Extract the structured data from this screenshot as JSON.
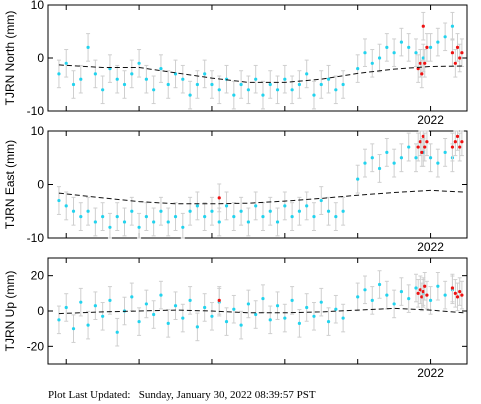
{
  "footer": {
    "label": "Plot Last Updated:",
    "timestamp": "Sunday, January 30, 2022 08:39:57 PST"
  },
  "colors": {
    "normal_points": "#22d3ee",
    "recent_points": "#ee1111",
    "error_bars": "#cfcfcf",
    "model_line": "#111111"
  },
  "chart_data": [
    {
      "type": "scatter",
      "ylabel": "TJRN North (mm)",
      "ylim": [
        -10,
        10
      ],
      "yticks": [
        -10,
        0,
        10
      ],
      "x_tick_label": "2022",
      "x_tick_label_visible": true,
      "x_range_years": [
        2016.75,
        2022.5
      ],
      "x_tick_year": 2022,
      "grid": false,
      "series": [
        {
          "kind": "points",
          "values": [
            [
              2016.9,
              -3
            ],
            [
              2017.0,
              -1
            ],
            [
              2017.1,
              -5
            ],
            [
              2017.2,
              -4
            ],
            [
              2017.3,
              2
            ],
            [
              2017.4,
              -3
            ],
            [
              2017.5,
              -6
            ],
            [
              2017.6,
              -2
            ],
            [
              2017.7,
              -4
            ],
            [
              2017.8,
              -5
            ],
            [
              2017.9,
              -3
            ],
            [
              2018.0,
              -1
            ],
            [
              2018.1,
              -4
            ],
            [
              2018.2,
              -6
            ],
            [
              2018.3,
              -2
            ],
            [
              2018.4,
              -5
            ],
            [
              2018.5,
              -3
            ],
            [
              2018.6,
              -4
            ],
            [
              2018.7,
              -7
            ],
            [
              2018.8,
              -5
            ],
            [
              2018.9,
              -3
            ],
            [
              2019.0,
              -5
            ],
            [
              2019.1,
              -6
            ],
            [
              2019.2,
              -4
            ],
            [
              2019.3,
              -7
            ],
            [
              2019.4,
              -5
            ],
            [
              2019.5,
              -6
            ],
            [
              2019.6,
              -4
            ],
            [
              2019.7,
              -7
            ],
            [
              2019.8,
              -5
            ],
            [
              2019.9,
              -6
            ],
            [
              2020.0,
              -4
            ],
            [
              2020.1,
              -6
            ],
            [
              2020.2,
              -5
            ],
            [
              2020.3,
              -3
            ],
            [
              2020.4,
              -7
            ],
            [
              2020.5,
              -5
            ],
            [
              2020.6,
              -4
            ],
            [
              2020.7,
              -6
            ],
            [
              2020.8,
              -5
            ],
            [
              2021.0,
              -2
            ],
            [
              2021.1,
              1
            ],
            [
              2021.2,
              -1
            ],
            [
              2021.3,
              0
            ],
            [
              2021.4,
              2
            ],
            [
              2021.5,
              1
            ],
            [
              2021.6,
              3
            ],
            [
              2021.7,
              2
            ],
            [
              2021.8,
              1
            ],
            [
              2021.9,
              0
            ],
            [
              2022.0,
              2
            ],
            [
              2022.1,
              3
            ],
            [
              2022.2,
              4
            ],
            [
              2022.3,
              6
            ]
          ]
        },
        {
          "kind": "recent",
          "values": [
            [
              2021.83,
              -2
            ],
            [
              2021.86,
              -1
            ],
            [
              2021.88,
              -3
            ],
            [
              2021.9,
              6
            ],
            [
              2021.92,
              -1
            ],
            [
              2021.95,
              2
            ],
            [
              2022.3,
              1
            ],
            [
              2022.34,
              -1
            ],
            [
              2022.37,
              2
            ],
            [
              2022.4,
              0
            ],
            [
              2022.43,
              1
            ]
          ]
        },
        {
          "kind": "model",
          "values": [
            [
              2016.9,
              -1.3
            ],
            [
              2017.5,
              -1.8
            ],
            [
              2018.0,
              -1.8
            ],
            [
              2018.5,
              -2.8
            ],
            [
              2019.0,
              -3.8
            ],
            [
              2019.5,
              -4.6
            ],
            [
              2020.0,
              -4.6
            ],
            [
              2020.5,
              -4.0
            ],
            [
              2021.0,
              -2.9
            ],
            [
              2021.5,
              -2.1
            ],
            [
              2022.0,
              -1.6
            ],
            [
              2022.45,
              -1.5
            ]
          ]
        }
      ]
    },
    {
      "type": "scatter",
      "ylabel": "TJRN East (mm)",
      "ylim": [
        -10,
        10
      ],
      "yticks": [
        -10,
        0,
        10
      ],
      "x_tick_label": "2022",
      "x_tick_label_visible": true,
      "x_range_years": [
        2016.75,
        2022.5
      ],
      "x_tick_year": 2022,
      "grid": false,
      "series": [
        {
          "kind": "points",
          "values": [
            [
              2016.9,
              -3
            ],
            [
              2017.0,
              -4
            ],
            [
              2017.1,
              -5
            ],
            [
              2017.2,
              -6
            ],
            [
              2017.3,
              -5
            ],
            [
              2017.4,
              -7
            ],
            [
              2017.5,
              -6
            ],
            [
              2017.6,
              -8
            ],
            [
              2017.7,
              -6
            ],
            [
              2017.8,
              -7
            ],
            [
              2017.9,
              -5
            ],
            [
              2018.0,
              -8
            ],
            [
              2018.1,
              -6
            ],
            [
              2018.2,
              -7
            ],
            [
              2018.3,
              -5
            ],
            [
              2018.4,
              -7
            ],
            [
              2018.5,
              -6
            ],
            [
              2018.6,
              -8
            ],
            [
              2018.7,
              -5
            ],
            [
              2018.8,
              -4
            ],
            [
              2018.9,
              -6
            ],
            [
              2019.0,
              -5
            ],
            [
              2019.1,
              -7
            ],
            [
              2019.2,
              -4
            ],
            [
              2019.3,
              -6
            ],
            [
              2019.4,
              -5
            ],
            [
              2019.5,
              -7
            ],
            [
              2019.6,
              -4
            ],
            [
              2019.7,
              -6
            ],
            [
              2019.8,
              -5
            ],
            [
              2019.9,
              -7
            ],
            [
              2020.0,
              -4
            ],
            [
              2020.1,
              -6
            ],
            [
              2020.2,
              -5
            ],
            [
              2020.3,
              -4
            ],
            [
              2020.4,
              -6
            ],
            [
              2020.5,
              -3
            ],
            [
              2020.6,
              -5
            ],
            [
              2020.7,
              -6
            ],
            [
              2020.8,
              -5
            ],
            [
              2021.0,
              1
            ],
            [
              2021.1,
              4
            ],
            [
              2021.2,
              5
            ],
            [
              2021.3,
              3
            ],
            [
              2021.4,
              6
            ],
            [
              2021.5,
              4
            ],
            [
              2021.6,
              5
            ],
            [
              2021.7,
              7
            ],
            [
              2021.8,
              5
            ],
            [
              2021.9,
              6
            ],
            [
              2022.0,
              5
            ],
            [
              2022.1,
              4
            ],
            [
              2022.2,
              6
            ],
            [
              2022.3,
              5
            ]
          ]
        },
        {
          "kind": "recent",
          "values": [
            [
              2021.83,
              7
            ],
            [
              2021.86,
              8
            ],
            [
              2021.88,
              6
            ],
            [
              2021.9,
              9
            ],
            [
              2021.92,
              7
            ],
            [
              2021.95,
              8
            ],
            [
              2022.3,
              7
            ],
            [
              2022.34,
              8
            ],
            [
              2022.37,
              9
            ],
            [
              2022.4,
              7
            ],
            [
              2022.43,
              8
            ],
            [
              2019.1,
              -2.5
            ]
          ]
        },
        {
          "kind": "model",
          "values": [
            [
              2016.9,
              -1.6
            ],
            [
              2017.5,
              -2.5
            ],
            [
              2018.0,
              -3.2
            ],
            [
              2018.5,
              -3.6
            ],
            [
              2019.0,
              -3.6
            ],
            [
              2019.5,
              -3.5
            ],
            [
              2020.0,
              -3.1
            ],
            [
              2020.5,
              -2.6
            ],
            [
              2021.0,
              -2.0
            ],
            [
              2021.5,
              -1.5
            ],
            [
              2022.0,
              -1.1
            ],
            [
              2022.45,
              -1.4
            ]
          ]
        }
      ]
    },
    {
      "type": "scatter",
      "ylabel": "TJRN Up (mm)",
      "ylim": [
        -30,
        30
      ],
      "yticks": [
        -20,
        0,
        20
      ],
      "x_tick_label": "2022",
      "x_tick_label_visible": true,
      "x_range_years": [
        2016.75,
        2022.5
      ],
      "x_tick_year": 2022,
      "grid": false,
      "series": [
        {
          "kind": "points",
          "values": [
            [
              2016.9,
              -5
            ],
            [
              2017.0,
              2
            ],
            [
              2017.1,
              -10
            ],
            [
              2017.2,
              5
            ],
            [
              2017.3,
              -8
            ],
            [
              2017.4,
              3
            ],
            [
              2017.5,
              -3
            ],
            [
              2017.6,
              6
            ],
            [
              2017.7,
              -12
            ],
            [
              2017.8,
              0
            ],
            [
              2017.9,
              8
            ],
            [
              2018.0,
              -6
            ],
            [
              2018.1,
              4
            ],
            [
              2018.2,
              -2
            ],
            [
              2018.3,
              9
            ],
            [
              2018.4,
              -7
            ],
            [
              2018.5,
              3
            ],
            [
              2018.6,
              -4
            ],
            [
              2018.7,
              6
            ],
            [
              2018.8,
              -9
            ],
            [
              2018.9,
              2
            ],
            [
              2019.0,
              -3
            ],
            [
              2019.1,
              5
            ],
            [
              2019.2,
              -6
            ],
            [
              2019.3,
              1
            ],
            [
              2019.4,
              -8
            ],
            [
              2019.5,
              4
            ],
            [
              2019.6,
              -2
            ],
            [
              2019.7,
              7
            ],
            [
              2019.8,
              -5
            ],
            [
              2019.9,
              3
            ],
            [
              2020.0,
              -4
            ],
            [
              2020.1,
              6
            ],
            [
              2020.2,
              -7
            ],
            [
              2020.3,
              2
            ],
            [
              2020.4,
              -3
            ],
            [
              2020.5,
              5
            ],
            [
              2020.6,
              -6
            ],
            [
              2020.7,
              1
            ],
            [
              2020.8,
              -4
            ],
            [
              2021.0,
              8
            ],
            [
              2021.1,
              12
            ],
            [
              2021.2,
              6
            ],
            [
              2021.3,
              15
            ],
            [
              2021.4,
              9
            ],
            [
              2021.5,
              4
            ],
            [
              2021.6,
              11
            ],
            [
              2021.7,
              7
            ],
            [
              2021.8,
              13
            ],
            [
              2021.9,
              10
            ],
            [
              2022.0,
              6
            ],
            [
              2022.1,
              14
            ],
            [
              2022.2,
              9
            ],
            [
              2022.3,
              12
            ]
          ]
        },
        {
          "kind": "recent",
          "values": [
            [
              2021.83,
              10
            ],
            [
              2021.86,
              12
            ],
            [
              2021.88,
              8
            ],
            [
              2021.9,
              11
            ],
            [
              2021.92,
              14
            ],
            [
              2021.95,
              9
            ],
            [
              2022.3,
              13
            ],
            [
              2022.34,
              10
            ],
            [
              2022.37,
              8
            ],
            [
              2022.4,
              11
            ],
            [
              2022.43,
              9
            ],
            [
              2019.1,
              6
            ]
          ]
        },
        {
          "kind": "model",
          "values": [
            [
              2016.9,
              -1.5
            ],
            [
              2017.5,
              -0.5
            ],
            [
              2018.0,
              0.0
            ],
            [
              2018.5,
              0.5
            ],
            [
              2019.0,
              0.0
            ],
            [
              2019.5,
              -1.0
            ],
            [
              2020.0,
              -1.0
            ],
            [
              2020.5,
              -0.5
            ],
            [
              2021.0,
              0.5
            ],
            [
              2021.5,
              1.5
            ],
            [
              2022.0,
              0.5
            ],
            [
              2022.45,
              -1.0
            ]
          ]
        }
      ]
    }
  ]
}
